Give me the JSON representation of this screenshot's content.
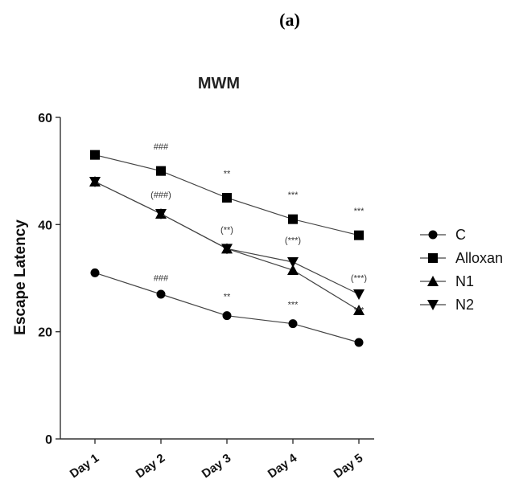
{
  "panel_label": "(a)",
  "chart_data": {
    "type": "line",
    "title": "MWM",
    "xlabel": "",
    "ylabel": "Escape Latency",
    "categories": [
      "Day 1",
      "Day 2",
      "Day 3",
      "Day 4",
      "Day 5"
    ],
    "ylim": [
      0,
      60
    ],
    "yticks": [
      0,
      20,
      40,
      60
    ],
    "grid": false,
    "legend_position": "right",
    "series": [
      {
        "name": "C",
        "marker": "circle",
        "values": [
          31,
          27,
          23,
          21.5,
          18
        ]
      },
      {
        "name": "Alloxan",
        "marker": "square",
        "values": [
          53,
          50,
          45,
          41,
          38
        ]
      },
      {
        "name": "N1",
        "marker": "triangle-up",
        "values": [
          48,
          42,
          35.5,
          31.5,
          24
        ]
      },
      {
        "name": "N2",
        "marker": "triangle-down",
        "values": [
          48,
          42,
          35.5,
          33,
          27
        ]
      }
    ],
    "annotations": [
      {
        "text": "###",
        "category": "Day 2",
        "y": 54
      },
      {
        "text": "**",
        "category": "Day 3",
        "y": 49
      },
      {
        "text": "***",
        "category": "Day 4",
        "y": 45
      },
      {
        "text": "***",
        "category": "Day 5",
        "y": 42
      },
      {
        "text": "(###)",
        "category": "Day 2",
        "y": 45
      },
      {
        "text": "(**)",
        "category": "Day 3",
        "y": 38.5
      },
      {
        "text": "(***)",
        "category": "Day 4",
        "y": 36.5
      },
      {
        "text": "(***)",
        "category": "Day 5",
        "y": 29.5
      },
      {
        "text": "###",
        "category": "Day 2",
        "y": 29.5
      },
      {
        "text": "**",
        "category": "Day 3",
        "y": 26
      },
      {
        "text": "***",
        "category": "Day 4",
        "y": 24.5
      },
      {
        "text": "***",
        "category": "Day 5",
        "y": 23.5
      }
    ]
  }
}
